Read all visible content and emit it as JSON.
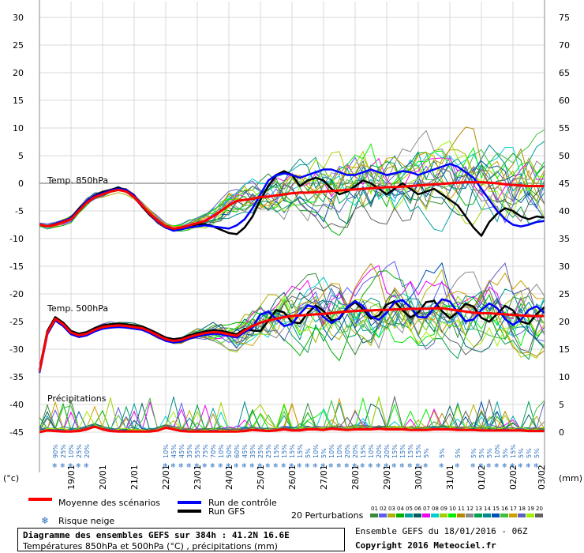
{
  "chart_data": {
    "type": "line",
    "title": "Diagramme des ensembles GEFS sur 384h : 41.2N 16.6E",
    "subtitle": "Températures 850hPa et 500hPa (°C) , précipitations (mm)",
    "left_axis": {
      "label": "(°c)",
      "ticks": [
        30,
        25,
        20,
        15,
        10,
        5,
        0,
        -5,
        -10,
        -15,
        -20,
        -25,
        -30,
        -35,
        -40,
        -45
      ],
      "range": [
        -45,
        30
      ]
    },
    "right_axis": {
      "label": "(mm)",
      "ticks": [
        75,
        70,
        65,
        60,
        55,
        50,
        45,
        40,
        35,
        30,
        25,
        20,
        15,
        10,
        5,
        0
      ],
      "range": [
        0,
        75
      ]
    },
    "x_labels": [
      "19/01",
      "20/01",
      "21/01",
      "22/01",
      "23/01",
      "24/01",
      "25/01",
      "26/01",
      "27/01",
      "28/01",
      "29/01",
      "30/01",
      "31/01",
      "01/02",
      "02/02",
      "03/02"
    ],
    "x_range": [
      0,
      64
    ],
    "x_label_positions": [
      4,
      8,
      12,
      16,
      20,
      24,
      28,
      32,
      36,
      40,
      44,
      48,
      52,
      56,
      60,
      63.6
    ],
    "sections": {
      "t850": "Temp. 850hPa",
      "t500": "Temp. 500hPa",
      "precip": "Précipitations"
    },
    "t850": {
      "mean": [
        -7.5,
        -7.8,
        -7.5,
        -7,
        -6.5,
        -5,
        -3.5,
        -2.5,
        -2,
        -1.5,
        -1.2,
        -1.5,
        -2.5,
        -4,
        -5.5,
        -6.8,
        -7.8,
        -8.2,
        -8,
        -7.6,
        -7.2,
        -6.8,
        -6,
        -5,
        -4,
        -3.2,
        -3,
        -2.8,
        -2.5,
        -2.4,
        -2.2,
        -2,
        -1.8,
        -1.7,
        -1.7,
        -1.6,
        -1.5,
        -1.4,
        -1.3,
        -1.2,
        -1.1,
        -1,
        -0.9,
        -0.8,
        -0.7,
        -0.7,
        -0.6,
        -0.5,
        -0.4,
        -0.3,
        -0.2,
        -0.1,
        0,
        0.1,
        0.2,
        0.2,
        0.2,
        0.1,
        0,
        -0.2,
        -0.3,
        -0.4,
        -0.5,
        -0.5,
        -0.5
      ],
      "control": [
        -7.5,
        -7.8,
        -7.3,
        -6.8,
        -6.3,
        -4.8,
        -3.2,
        -2.3,
        -1.8,
        -1.3,
        -1,
        -1.2,
        -2.2,
        -4,
        -5.6,
        -7,
        -8,
        -8.6,
        -8.3,
        -8,
        -7.8,
        -7.6,
        -7.8,
        -8,
        -8.2,
        -7.6,
        -6.5,
        -4.5,
        -2,
        0.5,
        1.5,
        1.8,
        1.5,
        1,
        1.5,
        2,
        2.5,
        2.5,
        2,
        1.5,
        1.5,
        2,
        2.5,
        2,
        1.5,
        1.8,
        2.2,
        2,
        1.5,
        2,
        2.5,
        3,
        3.5,
        3,
        2,
        1,
        -1,
        -3,
        -5,
        -6.5,
        -7.5,
        -7.8,
        -7.5,
        -7,
        -6.8
      ],
      "gfs": [
        -7.5,
        -7.8,
        -7.4,
        -7,
        -6.2,
        -4.6,
        -3.2,
        -2.2,
        -1.6,
        -1.2,
        -0.8,
        -1.2,
        -2.4,
        -4.2,
        -5.8,
        -7,
        -8,
        -8.5,
        -8.2,
        -7.8,
        -7.4,
        -7.4,
        -7.8,
        -8.4,
        -9,
        -9.2,
        -8,
        -6,
        -3,
        -0.5,
        1.5,
        2.2,
        1.5,
        -0.5,
        0.5,
        1,
        0.5,
        -1,
        -2,
        -1.5,
        -0.5,
        0.5,
        0,
        -1,
        -2,
        -1,
        0,
        -1,
        -2,
        -1.5,
        -1,
        -2,
        -3,
        -4,
        -6,
        -8,
        -9.5,
        -7,
        -5.5,
        -4.5,
        -5,
        -6,
        -6.5,
        -6,
        -6.2
      ],
      "members_count": 20
    },
    "t500": {
      "mean": [
        -34,
        -27,
        -24.5,
        -25.5,
        -27,
        -27.5,
        -27.2,
        -26.5,
        -26,
        -25.8,
        -25.7,
        -25.8,
        -26,
        -26.2,
        -26.8,
        -27.5,
        -28.2,
        -28.5,
        -28.3,
        -27.8,
        -27.4,
        -27.1,
        -26.9,
        -27,
        -27.3,
        -27.6,
        -26.6,
        -25.8,
        -25.2,
        -24.8,
        -24.5,
        -24.2,
        -24,
        -23.9,
        -23.8,
        -23.7,
        -23.6,
        -23.5,
        -23.3,
        -23.2,
        -23.1,
        -23,
        -23,
        -22.9,
        -22.9,
        -22.8,
        -22.8,
        -22.7,
        -22.7,
        -22.7,
        -22.6,
        -22.6,
        -22.8,
        -23,
        -23.2,
        -23.4,
        -23.5,
        -23.5,
        -23.6,
        -23.7,
        -23.8,
        -23.9,
        -24,
        -24,
        -24
      ]
    },
    "precip": {
      "mean": [
        0,
        0.3,
        0.2,
        0.1,
        0.1,
        0.2,
        0.5,
        1,
        0.5,
        0.2,
        0.1,
        0.1,
        0.1,
        0.1,
        0.1,
        0.3,
        0.8,
        0.5,
        0.2,
        0.1,
        0.1,
        0.1,
        0.1,
        0.1,
        0.1,
        0.1,
        0.2,
        0.4,
        0.3,
        0.2,
        0.3,
        0.5,
        0.3,
        0.3,
        0.5,
        0.5,
        0.4,
        0.6,
        0.5,
        0.4,
        0.5,
        0.5,
        0.5,
        0.6,
        0.5,
        0.5,
        0.5,
        0.4,
        0.4,
        0.4,
        0.5,
        0.5,
        0.5,
        0.4,
        0.4,
        0.4,
        0.3,
        0.3,
        0.3,
        0.3,
        0.3,
        0.3,
        0.2,
        0.2,
        0.2
      ]
    },
    "snow_risk": [
      {
        "x": 2,
        "label": "90%"
      },
      {
        "x": 3,
        "label": "25%"
      },
      {
        "x": 4,
        "label": "10%"
      },
      {
        "x": 5,
        "label": "25%"
      },
      {
        "x": 6,
        "label": "20%"
      },
      {
        "x": 16,
        "label": "10%"
      },
      {
        "x": 17,
        "label": "45%"
      },
      {
        "x": 18,
        "label": "45%"
      },
      {
        "x": 19,
        "label": "35%"
      },
      {
        "x": 20,
        "label": "55%"
      },
      {
        "x": 21,
        "label": "75%"
      },
      {
        "x": 22,
        "label": "70%"
      },
      {
        "x": 23,
        "label": "10%"
      },
      {
        "x": 24,
        "label": "50%"
      },
      {
        "x": 25,
        "label": "60%"
      },
      {
        "x": 26,
        "label": "45%"
      },
      {
        "x": 27,
        "label": "35%"
      },
      {
        "x": 28,
        "label": "25%"
      },
      {
        "x": 29,
        "label": "25%"
      },
      {
        "x": 30,
        "label": "15%"
      },
      {
        "x": 31,
        "label": "15%"
      },
      {
        "x": 32,
        "label": "15%"
      },
      {
        "x": 33,
        "label": "15%"
      },
      {
        "x": 34,
        "label": "5%"
      },
      {
        "x": 35,
        "label": "10%"
      },
      {
        "x": 36,
        "label": "5%"
      },
      {
        "x": 37,
        "label": "10%"
      },
      {
        "x": 38,
        "label": "10%"
      },
      {
        "x": 39,
        "label": "20%"
      },
      {
        "x": 40,
        "label": "20%"
      },
      {
        "x": 41,
        "label": "15%"
      },
      {
        "x": 42,
        "label": "10%"
      },
      {
        "x": 43,
        "label": "20%"
      },
      {
        "x": 44,
        "label": "20%"
      },
      {
        "x": 45,
        "label": "15%"
      },
      {
        "x": 46,
        "label": "15%"
      },
      {
        "x": 47,
        "label": "15%"
      },
      {
        "x": 48,
        "label": "15%"
      },
      {
        "x": 49,
        "label": "5%"
      },
      {
        "x": 51,
        "label": "5%"
      },
      {
        "x": 53,
        "label": "5%"
      },
      {
        "x": 55,
        "label": "5%"
      },
      {
        "x": 56,
        "label": "5%"
      },
      {
        "x": 57,
        "label": "5%"
      },
      {
        "x": 58,
        "label": "10%"
      },
      {
        "x": 59,
        "label": "5%"
      },
      {
        "x": 60,
        "label": "15%"
      },
      {
        "x": 61,
        "label": "5%"
      },
      {
        "x": 62,
        "label": "5%"
      },
      {
        "x": 63,
        "label": "5%"
      }
    ],
    "member_colors": [
      "#3a8a3a",
      "#5c5cf0",
      "#b0b000",
      "#00b000",
      "#00a0a0",
      "#006060",
      "#f000f0",
      "#00d0d0",
      "#a0d000",
      "#00f000",
      "#b08a00",
      "#8a8a8a",
      "#00a050",
      "#008a8a",
      "#0050b0",
      "#40c040",
      "#d0a000",
      "#6060c0",
      "#a0f000",
      "#606060"
    ],
    "legend": {
      "mean": "Moyenne des scénarios",
      "control": "Run de contrôle",
      "gfs": "Run GFS",
      "snow": "Risque neige",
      "perturbations": "20 Perturbations",
      "pert_numbers": [
        "01",
        "02",
        "03",
        "04",
        "05",
        "06",
        "07",
        "08",
        "09",
        "10",
        "11",
        "12",
        "13",
        "14",
        "15",
        "16",
        "17",
        "18",
        "19",
        "20"
      ],
      "mean_color": "#ff0000",
      "control_color": "#0000ff",
      "gfs_color": "#000000"
    },
    "footer": {
      "run": "Ensemble GEFS du 18/01/2016 - 06Z",
      "copyright": "Copyright 2016 Meteociel.fr"
    }
  }
}
